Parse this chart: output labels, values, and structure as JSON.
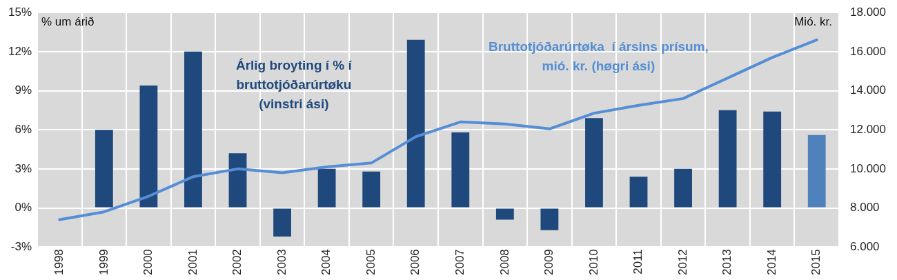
{
  "chart_data": {
    "type": "bar",
    "ylabel": "% um árið",
    "y2label": "Mió. kr.",
    "categories": [
      "1998",
      "1999",
      "2000",
      "2001",
      "2002",
      "2003",
      "2004",
      "2005",
      "2006",
      "2007",
      "2008",
      "2009",
      "2010",
      "2011",
      "2012",
      "2013",
      "2014",
      "2015"
    ],
    "series": [
      {
        "name": "Árlig broyting í % í bruttotjóðarúrtøku (vinstri ási)",
        "color": "#1f497d",
        "colors": [
          "#1f497d",
          "#1f497d",
          "#1f497d",
          "#1f497d",
          "#1f497d",
          "#1f497d",
          "#1f497d",
          "#1f497d",
          "#1f497d",
          "#1f497d",
          "#1f497d",
          "#1f497d",
          "#1f497d",
          "#1f497d",
          "#1f497d",
          "#1f497d",
          "#1f497d",
          "#4f81bd"
        ],
        "values": [
          null,
          6.0,
          9.4,
          12.0,
          4.2,
          -2.2,
          3.0,
          2.8,
          12.9,
          5.8,
          -0.9,
          -1.7,
          6.9,
          2.4,
          3.0,
          7.5,
          7.4,
          5.6
        ]
      },
      {
        "type": "line",
        "axis": "y2",
        "name": "Bruttotjóðarúrtøka  í ársins prísum, mió. kr. (høgri ási)",
        "color": "#558ed5",
        "values": [
          7400,
          7800,
          8600,
          9600,
          10000,
          9800,
          10100,
          10300,
          11650,
          12400,
          12300,
          12050,
          12850,
          13250,
          13600,
          14650,
          15700,
          16600
        ]
      }
    ],
    "ylim": [
      -3,
      15
    ],
    "yticks": [
      {
        "value": -3,
        "label": "-3%"
      },
      {
        "value": 0,
        "label": "0%"
      },
      {
        "value": 3,
        "label": "3%"
      },
      {
        "value": 6,
        "label": "6%"
      },
      {
        "value": 9,
        "label": "9%"
      },
      {
        "value": 12,
        "label": "12%"
      },
      {
        "value": 15,
        "label": "15%"
      }
    ],
    "y2lim": [
      6000,
      18000
    ],
    "y2ticks": [
      {
        "value": 6000,
        "label": "6.000"
      },
      {
        "value": 8000,
        "label": "8.000"
      },
      {
        "value": 10000,
        "label": "10.000"
      },
      {
        "value": 12000,
        "label": "12.000"
      },
      {
        "value": 14000,
        "label": "14.000"
      },
      {
        "value": 16000,
        "label": "16.000"
      },
      {
        "value": 18000,
        "label": "18.000"
      }
    ],
    "grid": true,
    "legend": false,
    "marker": "none",
    "line_style": "solid"
  }
}
